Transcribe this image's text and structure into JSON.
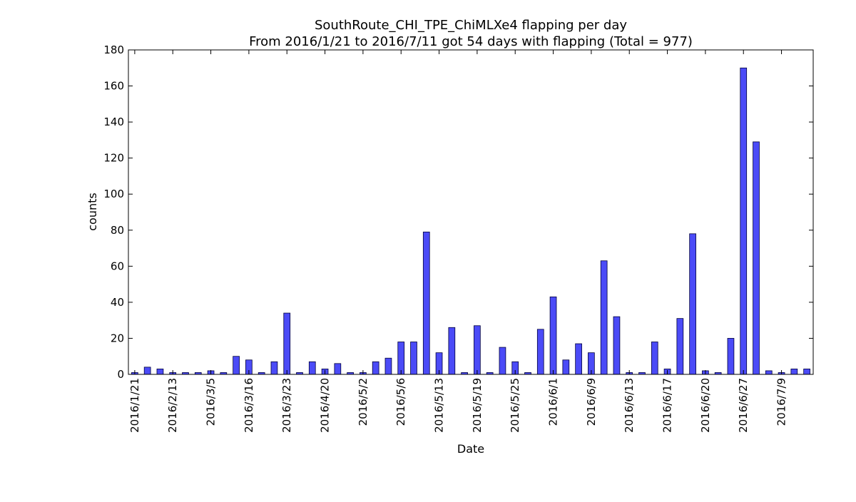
{
  "chart_data": {
    "type": "bar",
    "title": "SouthRoute_CHI_TPE_ChiMLXe4 flapping per day",
    "subtitle": "From 2016/1/21 to 2016/7/11 got 54 days with flapping (Total = 977)",
    "xlabel": "Date",
    "ylabel": "counts",
    "ylim": [
      0,
      180
    ],
    "yticks": [
      0,
      20,
      40,
      60,
      80,
      100,
      120,
      140,
      160,
      180
    ],
    "grid": false,
    "legend": "none",
    "bar_color": "#4b4bf7",
    "bar_edge_color": "#00003c",
    "x_tick_labels": [
      {
        "index": 0,
        "label": "2016/1/21"
      },
      {
        "index": 3,
        "label": "2016/2/13"
      },
      {
        "index": 6,
        "label": "2016/3/5"
      },
      {
        "index": 9,
        "label": "2016/3/16"
      },
      {
        "index": 12,
        "label": "2016/3/23"
      },
      {
        "index": 15,
        "label": "2016/4/20"
      },
      {
        "index": 18,
        "label": "2016/5/2"
      },
      {
        "index": 21,
        "label": "2016/5/6"
      },
      {
        "index": 24,
        "label": "2016/5/13"
      },
      {
        "index": 27,
        "label": "2016/5/19"
      },
      {
        "index": 30,
        "label": "2016/5/25"
      },
      {
        "index": 33,
        "label": "2016/6/1"
      },
      {
        "index": 36,
        "label": "2016/6/9"
      },
      {
        "index": 39,
        "label": "2016/6/13"
      },
      {
        "index": 42,
        "label": "2016/6/17"
      },
      {
        "index": 45,
        "label": "2016/6/20"
      },
      {
        "index": 48,
        "label": "2016/6/27"
      },
      {
        "index": 51,
        "label": "2016/7/9"
      }
    ],
    "values": [
      1,
      4,
      3,
      1,
      1,
      1,
      2,
      1,
      10,
      8,
      1,
      7,
      34,
      1,
      7,
      3,
      6,
      1,
      1,
      7,
      9,
      18,
      18,
      79,
      12,
      26,
      1,
      27,
      1,
      15,
      7,
      1,
      25,
      43,
      8,
      17,
      12,
      63,
      32,
      1,
      1,
      18,
      3,
      31,
      78,
      2,
      1,
      20,
      170,
      129,
      2,
      1,
      3,
      3
    ]
  }
}
